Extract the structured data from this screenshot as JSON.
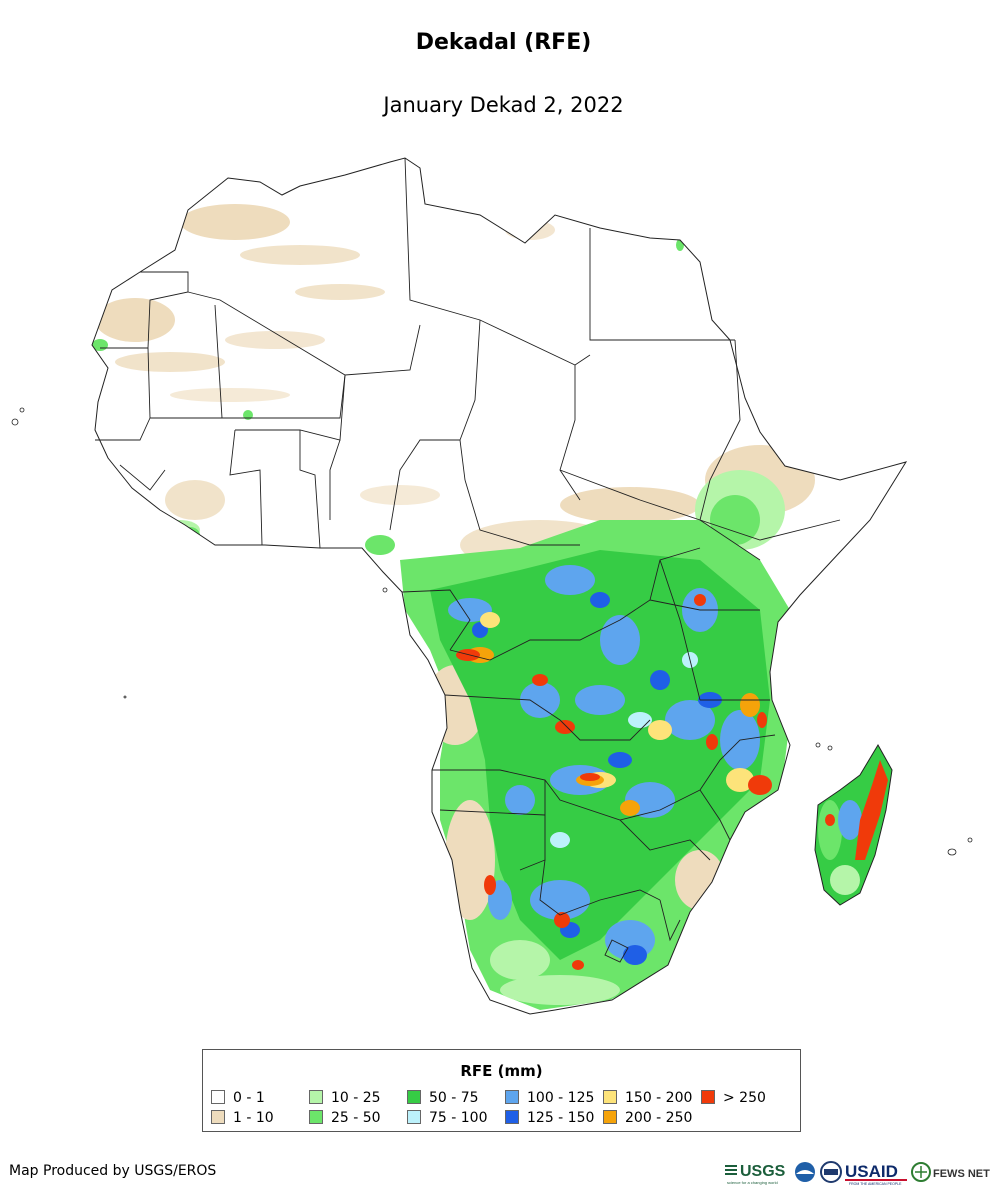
{
  "title": "Dekadal (RFE)",
  "subtitle": "January Dekad 2, 2022",
  "legend": {
    "title": "RFE (mm)",
    "items": [
      {
        "label": "0 - 1",
        "color": "#ffffff"
      },
      {
        "label": "1 - 10",
        "color": "#eedcbd"
      },
      {
        "label": "10 - 25",
        "color": "#b5f5a9"
      },
      {
        "label": "25 - 50",
        "color": "#6ce56a"
      },
      {
        "label": "50 - 75",
        "color": "#36cc45"
      },
      {
        "label": "75 - 100",
        "color": "#bcf1fb"
      },
      {
        "label": "100 - 125",
        "color": "#5ea5ee"
      },
      {
        "label": "125 - 150",
        "color": "#1f5fe6"
      },
      {
        "label": "150 - 200",
        "color": "#fde37a"
      },
      {
        "label": "200 - 250",
        "color": "#f5a30a"
      },
      {
        "label": "> 250",
        "color": "#f03a0a"
      }
    ]
  },
  "credit": "Map Produced by USGS/EROS",
  "logos": {
    "usgs": "USGS",
    "usgs_tagline": "science for a changing world",
    "usaid": "USAID",
    "usaid_tagline": "FROM THE AMERICAN PEOPLE",
    "fewsnet": "FEWS NET"
  },
  "colors": {
    "border": "#222222",
    "sea": "#ffffff"
  }
}
